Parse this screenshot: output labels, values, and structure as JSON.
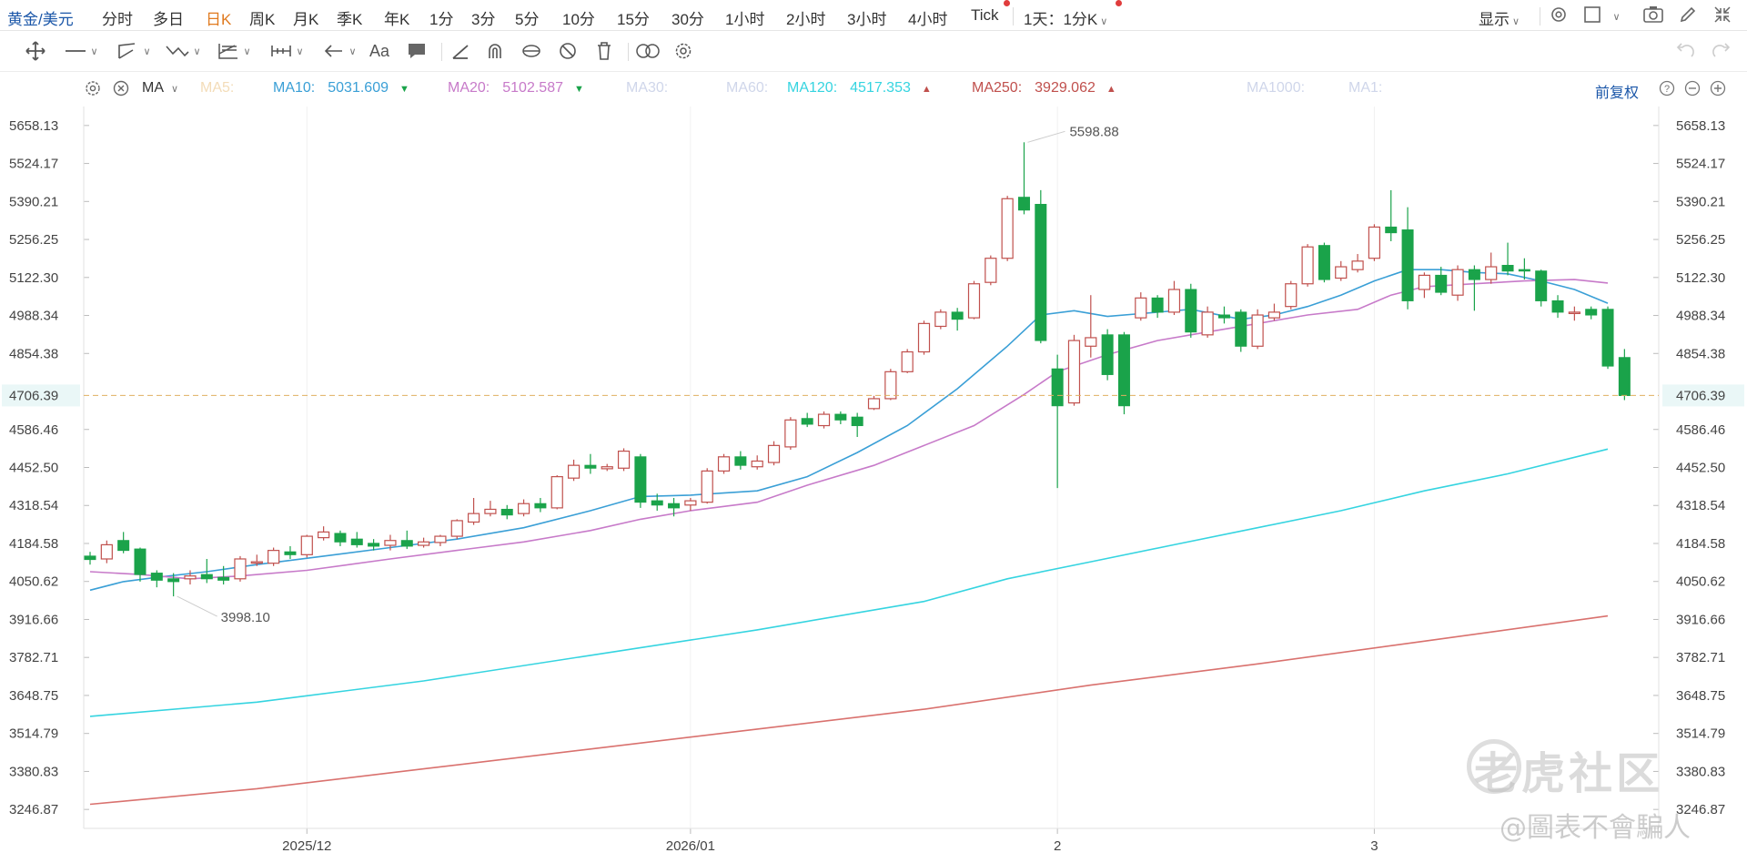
{
  "topbar": {
    "symbol": "黄金/美元",
    "periods": [
      "分时",
      "多日",
      "日K",
      "周K",
      "月K",
      "季K",
      "年K",
      "1分",
      "3分",
      "5分",
      "10分",
      "15分",
      "30分",
      "1小时",
      "2小时",
      "3小时",
      "4小时",
      "Tick"
    ],
    "active_period": "日K",
    "range_select": "1天：1分K",
    "display_label": "显示"
  },
  "ma_bar": {
    "label": "MA",
    "items": [
      {
        "label": "MA5:",
        "value": "",
        "color": "#f3dcb8"
      },
      {
        "label": "MA10:",
        "value": "5031.609",
        "color": "#3a9fd6",
        "arrow": "down"
      },
      {
        "label": "MA20:",
        "value": "5102.587",
        "color": "#c77ac9",
        "arrow": "down"
      },
      {
        "label": "MA30:",
        "value": "",
        "color": "#cfd6ea"
      },
      {
        "label": "MA60:",
        "value": "",
        "color": "#cfd6ea"
      },
      {
        "label": "MA120:",
        "value": "4517.353",
        "color": "#35d4e0",
        "arrow": "up"
      },
      {
        "label": "MA250:",
        "value": "3929.062",
        "color": "#c0504d",
        "arrow": "up"
      },
      {
        "label": "MA1000:",
        "value": "",
        "color": "#cfd6ea"
      },
      {
        "label": "MA1:",
        "value": "",
        "color": "#cfd6ea"
      }
    ],
    "adjust_label": "前复权"
  },
  "colors": {
    "up": "#c0504d",
    "down": "#1aa34a",
    "ma10": "#3a9fd6",
    "ma20": "#c77ac9",
    "ma120": "#35d4e0",
    "ma250": "#d9716e",
    "current": "#e0b060",
    "accent": "#1a56a8"
  },
  "watermark": {
    "brand": "老虎社区",
    "handle": "@圖表不會騙人"
  },
  "chart_data": {
    "type": "candlestick",
    "ylim": [
      3180.0,
      5725.0
    ],
    "y_ticks": [
      "5658.13",
      "5524.17",
      "5390.21",
      "5256.25",
      "5122.30",
      "4988.34",
      "4854.38",
      "4706.39",
      "4586.46",
      "4452.50",
      "4318.54",
      "4184.58",
      "4050.62",
      "3916.66",
      "3782.71",
      "3648.75",
      "3514.79",
      "3380.83",
      "3246.87"
    ],
    "current_price": "4706.39",
    "x_labels": [
      {
        "label": "2025/12",
        "index": 13
      },
      {
        "label": "2026/01",
        "index": 36
      },
      {
        "label": "2",
        "index": 58
      },
      {
        "label": "3",
        "index": 77
      }
    ],
    "annotations": [
      {
        "text": "5598.88",
        "index": 56,
        "price": 5598.88,
        "kind": "high"
      },
      {
        "text": "3998.10",
        "index": 5,
        "price": 3998.1,
        "kind": "low"
      }
    ],
    "candles": [
      [
        4140,
        4128,
        4155,
        4110
      ],
      [
        4130,
        4180,
        4195,
        4115
      ],
      [
        4195,
        4160,
        4225,
        4150
      ],
      [
        4165,
        4075,
        4170,
        4050
      ],
      [
        4080,
        4055,
        4090,
        4030
      ],
      [
        4060,
        4050,
        4080,
        3998.1
      ],
      [
        4060,
        4070,
        4090,
        4040
      ],
      [
        4075,
        4060,
        4130,
        4045
      ],
      [
        4065,
        4055,
        4105,
        4040
      ],
      [
        4060,
        4130,
        4140,
        4050
      ],
      [
        4120,
        4120,
        4145,
        4105
      ],
      [
        4115,
        4160,
        4170,
        4105
      ],
      [
        4155,
        4145,
        4175,
        4130
      ],
      [
        4145,
        4210,
        4215,
        4135
      ],
      [
        4205,
        4225,
        4245,
        4195
      ],
      [
        4220,
        4190,
        4230,
        4175
      ],
      [
        4200,
        4180,
        4225,
        4170
      ],
      [
        4185,
        4175,
        4200,
        4160
      ],
      [
        4178,
        4195,
        4215,
        4160
      ],
      [
        4195,
        4175,
        4230,
        4165
      ],
      [
        4178,
        4190,
        4205,
        4170
      ],
      [
        4188,
        4210,
        4215,
        4175
      ],
      [
        4210,
        4265,
        4270,
        4200
      ],
      [
        4260,
        4290,
        4345,
        4250
      ],
      [
        4290,
        4305,
        4335,
        4280
      ],
      [
        4305,
        4285,
        4320,
        4270
      ],
      [
        4290,
        4325,
        4340,
        4280
      ],
      [
        4325,
        4310,
        4345,
        4295
      ],
      [
        4310,
        4420,
        4425,
        4305
      ],
      [
        4415,
        4460,
        4480,
        4405
      ],
      [
        4460,
        4450,
        4500,
        4430
      ],
      [
        4448,
        4455,
        4465,
        4440
      ],
      [
        4450,
        4510,
        4520,
        4440
      ],
      [
        4490,
        4330,
        4500,
        4310
      ],
      [
        4335,
        4320,
        4360,
        4300
      ],
      [
        4325,
        4310,
        4345,
        4280
      ],
      [
        4320,
        4335,
        4345,
        4300
      ],
      [
        4330,
        4440,
        4450,
        4325
      ],
      [
        4440,
        4490,
        4500,
        4430
      ],
      [
        4490,
        4460,
        4510,
        4445
      ],
      [
        4455,
        4475,
        4495,
        4445
      ],
      [
        4470,
        4530,
        4545,
        4460
      ],
      [
        4525,
        4620,
        4630,
        4515
      ],
      [
        4625,
        4605,
        4645,
        4595
      ],
      [
        4600,
        4640,
        4650,
        4590
      ],
      [
        4640,
        4620,
        4650,
        4605
      ],
      [
        4630,
        4600,
        4645,
        4560
      ],
      [
        4660,
        4695,
        4705,
        4655
      ],
      [
        4695,
        4790,
        4800,
        4690
      ],
      [
        4790,
        4860,
        4870,
        4785
      ],
      [
        4860,
        4960,
        4970,
        4850
      ],
      [
        4950,
        5000,
        5010,
        4940
      ],
      [
        5000,
        4975,
        5015,
        4935
      ],
      [
        4980,
        5100,
        5110,
        4975
      ],
      [
        5105,
        5190,
        5200,
        5095
      ],
      [
        5190,
        5400,
        5410,
        5180
      ],
      [
        5405,
        5360,
        5598.88,
        5345
      ],
      [
        5380,
        4900,
        5430,
        4890
      ],
      [
        4800,
        4670,
        4850,
        4380
      ],
      [
        4680,
        4900,
        4920,
        4670
      ],
      [
        4880,
        4910,
        5060,
        4840
      ],
      [
        4920,
        4780,
        4940,
        4760
      ],
      [
        4920,
        4670,
        4930,
        4640
      ],
      [
        4980,
        5050,
        5070,
        4970
      ],
      [
        5050,
        5000,
        5060,
        4980
      ],
      [
        5000,
        5080,
        5110,
        4990
      ],
      [
        5080,
        4930,
        5100,
        4910
      ],
      [
        4920,
        5000,
        5020,
        4910
      ],
      [
        4990,
        4980,
        5020,
        4960
      ],
      [
        5000,
        4880,
        5010,
        4860
      ],
      [
        4880,
        4990,
        5010,
        4870
      ],
      [
        4980,
        5000,
        5030,
        4970
      ],
      [
        5020,
        5100,
        5110,
        5010
      ],
      [
        5100,
        5230,
        5240,
        5090
      ],
      [
        5235,
        5115,
        5245,
        5105
      ],
      [
        5120,
        5160,
        5180,
        5110
      ],
      [
        5150,
        5180,
        5205,
        5140
      ],
      [
        5190,
        5300,
        5310,
        5180
      ],
      [
        5300,
        5280,
        5430,
        5250
      ],
      [
        5290,
        5040,
        5370,
        5010
      ],
      [
        5080,
        5130,
        5140,
        5050
      ],
      [
        5130,
        5070,
        5160,
        5060
      ],
      [
        5060,
        5150,
        5165,
        5040
      ],
      [
        5150,
        5115,
        5165,
        5005
      ],
      [
        5115,
        5160,
        5210,
        5100
      ],
      [
        5165,
        5145,
        5245,
        5130
      ],
      [
        5150,
        5145,
        5190,
        5115
      ],
      [
        5145,
        5040,
        5150,
        5020
      ],
      [
        5040,
        5000,
        5060,
        4980
      ],
      [
        5000,
        5000,
        5020,
        4970
      ],
      [
        5010,
        4990,
        5020,
        4975
      ],
      [
        5010,
        4810,
        5020,
        4800
      ],
      [
        4840,
        4706,
        4870,
        4690
      ]
    ],
    "series": [
      {
        "name": "MA10",
        "color": "#3a9fd6",
        "values": [
          [
            0,
            4020
          ],
          [
            2,
            4050
          ],
          [
            4,
            4065
          ],
          [
            7,
            4085
          ],
          [
            10,
            4110
          ],
          [
            14,
            4140
          ],
          [
            18,
            4170
          ],
          [
            22,
            4200
          ],
          [
            26,
            4240
          ],
          [
            30,
            4300
          ],
          [
            33,
            4350
          ],
          [
            36,
            4355
          ],
          [
            40,
            4370
          ],
          [
            43,
            4420
          ],
          [
            46,
            4505
          ],
          [
            49,
            4600
          ],
          [
            52,
            4730
          ],
          [
            55,
            4880
          ],
          [
            57,
            4990
          ],
          [
            59,
            5005
          ],
          [
            61,
            4985
          ],
          [
            63,
            4995
          ],
          [
            66,
            5010
          ],
          [
            69,
            4975
          ],
          [
            71,
            4990
          ],
          [
            73,
            5020
          ],
          [
            75,
            5060
          ],
          [
            77,
            5110
          ],
          [
            79,
            5150
          ],
          [
            81,
            5150
          ],
          [
            83,
            5140
          ],
          [
            85,
            5135
          ],
          [
            87,
            5110
          ],
          [
            89,
            5080
          ],
          [
            91,
            5031.6
          ]
        ]
      },
      {
        "name": "MA20",
        "color": "#c77ac9",
        "values": [
          [
            0,
            4085
          ],
          [
            3,
            4075
          ],
          [
            6,
            4060
          ],
          [
            9,
            4070
          ],
          [
            13,
            4090
          ],
          [
            18,
            4130
          ],
          [
            22,
            4160
          ],
          [
            26,
            4190
          ],
          [
            30,
            4230
          ],
          [
            33,
            4270
          ],
          [
            36,
            4300
          ],
          [
            40,
            4330
          ],
          [
            43,
            4390
          ],
          [
            47,
            4460
          ],
          [
            50,
            4530
          ],
          [
            53,
            4600
          ],
          [
            56,
            4710
          ],
          [
            58,
            4790
          ],
          [
            61,
            4850
          ],
          [
            64,
            4900
          ],
          [
            67,
            4930
          ],
          [
            70,
            4960
          ],
          [
            73,
            4990
          ],
          [
            76,
            5010
          ],
          [
            78,
            5060
          ],
          [
            80,
            5090
          ],
          [
            83,
            5100
          ],
          [
            86,
            5110
          ],
          [
            89,
            5115
          ],
          [
            91,
            5102.6
          ]
        ]
      },
      {
        "name": "MA120",
        "color": "#35d4e0",
        "values": [
          [
            0,
            3575
          ],
          [
            10,
            3625
          ],
          [
            20,
            3700
          ],
          [
            30,
            3790
          ],
          [
            40,
            3880
          ],
          [
            50,
            3980
          ],
          [
            55,
            4060
          ],
          [
            60,
            4120
          ],
          [
            65,
            4180
          ],
          [
            70,
            4240
          ],
          [
            75,
            4300
          ],
          [
            80,
            4370
          ],
          [
            85,
            4430
          ],
          [
            91,
            4517.35
          ]
        ]
      },
      {
        "name": "MA250",
        "color": "#d9716e",
        "values": [
          [
            0,
            3265
          ],
          [
            10,
            3320
          ],
          [
            20,
            3390
          ],
          [
            30,
            3460
          ],
          [
            40,
            3530
          ],
          [
            50,
            3600
          ],
          [
            60,
            3685
          ],
          [
            70,
            3760
          ],
          [
            80,
            3840
          ],
          [
            91,
            3929.06
          ]
        ]
      }
    ]
  }
}
